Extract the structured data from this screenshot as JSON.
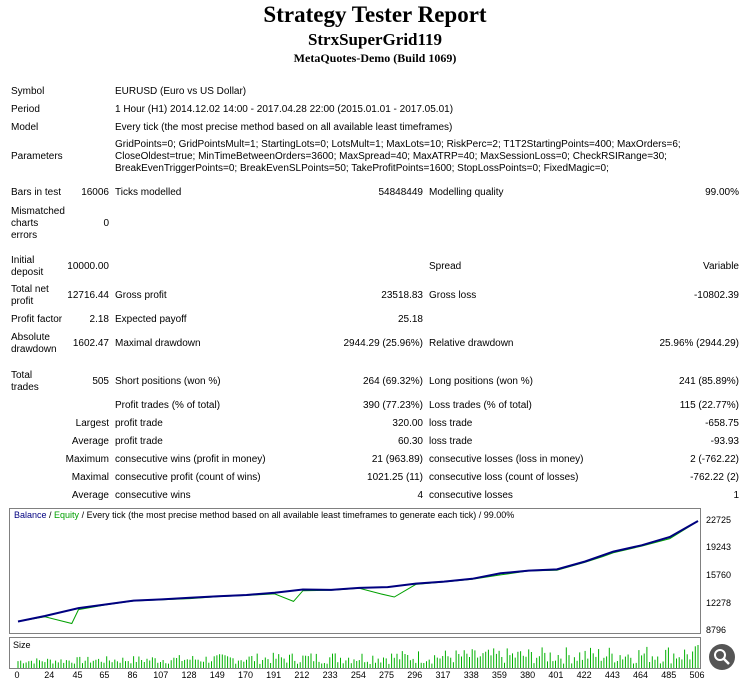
{
  "header": {
    "title": "Strategy Tester Report",
    "ea_name": "StrxSuperGrid119",
    "build": "MetaQuotes-Demo (Build 1069)"
  },
  "info": {
    "symbol_label": "Symbol",
    "symbol_value": "EURUSD (Euro vs US Dollar)",
    "period_label": "Period",
    "period_value": "1 Hour (H1) 2014.12.02 14:00 - 2017.04.28 22:00 (2015.01.01 - 2017.05.01)",
    "model_label": "Model",
    "model_value": "Every tick (the most precise method based on all available least timeframes)",
    "params_label": "Parameters",
    "params_line1": "GridPoints=0; GridPointsMult=1; StartingLots=0; LotsMult=1; MaxLots=10; RiskPerc=2; T1T2StartingPoints=400; MaxOrders=6;",
    "params_line2": "CloseOldest=true; MinTimeBetweenOrders=3600; MaxSpread=40; MaxATRP=40; MaxSessionLoss=0; CheckRSIRange=30;",
    "params_line3": "BreakEvenTriggerPoints=0; BreakEvenSLPoints=50; TakeProfitPoints=1600; StopLossPoints=0; FixedMagic=0;"
  },
  "stats": {
    "bars_label": "Bars in test",
    "bars_value": "16006",
    "ticks_label": "Ticks modelled",
    "ticks_value": "54848449",
    "quality_label": "Modelling quality",
    "quality_value": "99.00%",
    "mismatch_l1": "Mismatched",
    "mismatch_l2": "charts",
    "mismatch_l3": "errors",
    "mismatch_value": "0",
    "deposit_l1": "Initial",
    "deposit_l2": "deposit",
    "deposit_value": "10000.00",
    "spread_label": "Spread",
    "spread_value": "Variable",
    "netprofit_l1": "Total net",
    "netprofit_l2": "profit",
    "netprofit_value": "12716.44",
    "gross_profit_label": "Gross profit",
    "gross_profit_value": "23518.83",
    "gross_loss_label": "Gross loss",
    "gross_loss_value": "-10802.39",
    "pf_label": "Profit factor",
    "pf_value": "2.18",
    "payoff_label": "Expected payoff",
    "payoff_value": "25.18",
    "absdd_l1": "Absolute",
    "absdd_l2": "drawdown",
    "absdd_value": "1602.47",
    "maxdd_label": "Maximal drawdown",
    "maxdd_value": "2944.29 (25.96%)",
    "reldd_label": "Relative drawdown",
    "reldd_value": "25.96% (2944.29)",
    "trades_l1": "Total",
    "trades_l2": "trades",
    "trades_value": "505",
    "short_label": "Short positions (won %)",
    "short_value": "264 (69.32%)",
    "long_label": "Long positions (won %)",
    "long_value": "241 (85.89%)",
    "profit_trades_label": "Profit trades (% of total)",
    "profit_trades_value": "390 (77.23%)",
    "loss_trades_label": "Loss trades (% of total)",
    "loss_trades_value": "115 (22.77%)",
    "largest_label": "Largest",
    "largest_pt_label": "profit trade",
    "largest_pt_value": "320.00",
    "largest_lt_label": "loss trade",
    "largest_lt_value": "-658.75",
    "average_label": "Average",
    "average_pt_label": "profit trade",
    "average_pt_value": "60.30",
    "average_lt_label": "loss trade",
    "average_lt_value": "-93.93",
    "maximum_label": "Maximum",
    "max_cw_label": "consecutive wins (profit in money)",
    "max_cw_value": "21 (963.89)",
    "max_cl_label": "consecutive losses (loss in money)",
    "max_cl_value": "2 (-762.22)",
    "maximal_label": "Maximal",
    "maximal_cp_label": "consecutive profit (count of wins)",
    "maximal_cp_value": "1021.25 (11)",
    "maximal_cl_label": "consecutive loss (count of losses)",
    "maximal_cl_value": "-762.22 (2)",
    "average2_label": "Average",
    "avg_cw_label": "consecutive wins",
    "avg_cw_value": "4",
    "avg_cl_label": "consecutive losses",
    "avg_cl_value": "1"
  },
  "chart_data": {
    "type": "line",
    "legend_balance": "Balance",
    "legend_sep": " / ",
    "legend_equity": "Equity",
    "legend_rest": " / Every tick (the most precise method based on all available least timeframes to generate each tick) / 99.00%",
    "size_label": "Size",
    "yticks": [
      "22725",
      "19243",
      "15760",
      "12278",
      "8796"
    ],
    "xticks": [
      "0",
      "24",
      "45",
      "65",
      "86",
      "107",
      "128",
      "149",
      "170",
      "191",
      "212",
      "233",
      "254",
      "275",
      "296",
      "317",
      "338",
      "359",
      "380",
      "401",
      "422",
      "443",
      "464",
      "485",
      "506"
    ],
    "ylim": [
      8796,
      22725
    ],
    "xlim": [
      0,
      506
    ],
    "balance": [
      [
        0,
        10000
      ],
      [
        20,
        10700
      ],
      [
        45,
        11700
      ],
      [
        65,
        12150
      ],
      [
        86,
        12650
      ],
      [
        107,
        12800
      ],
      [
        128,
        13000
      ],
      [
        149,
        13200
      ],
      [
        170,
        13350
      ],
      [
        191,
        13650
      ],
      [
        212,
        14050
      ],
      [
        233,
        14000
      ],
      [
        254,
        14250
      ],
      [
        275,
        14350
      ],
      [
        296,
        14800
      ],
      [
        317,
        15050
      ],
      [
        338,
        15400
      ],
      [
        359,
        16100
      ],
      [
        380,
        16450
      ],
      [
        401,
        16600
      ],
      [
        422,
        17600
      ],
      [
        443,
        18850
      ],
      [
        464,
        19650
      ],
      [
        485,
        20700
      ],
      [
        506,
        22725
      ]
    ],
    "equity": [
      [
        0,
        10000
      ],
      [
        20,
        10600
      ],
      [
        40,
        9750
      ],
      [
        45,
        11500
      ],
      [
        65,
        12100
      ],
      [
        86,
        12600
      ],
      [
        107,
        12750
      ],
      [
        128,
        12900
      ],
      [
        149,
        13150
      ],
      [
        170,
        13300
      ],
      [
        191,
        13500
      ],
      [
        205,
        12550
      ],
      [
        212,
        13900
      ],
      [
        233,
        13950
      ],
      [
        254,
        14200
      ],
      [
        270,
        13500
      ],
      [
        280,
        13100
      ],
      [
        296,
        14700
      ],
      [
        317,
        15000
      ],
      [
        338,
        15350
      ],
      [
        359,
        15900
      ],
      [
        380,
        16400
      ],
      [
        401,
        16500
      ],
      [
        422,
        17500
      ],
      [
        435,
        18200
      ],
      [
        443,
        18700
      ],
      [
        464,
        19550
      ],
      [
        485,
        20500
      ],
      [
        506,
        22700
      ]
    ],
    "colors": {
      "balance": "#000080",
      "equity": "#00a000",
      "size": "#00b000"
    }
  }
}
